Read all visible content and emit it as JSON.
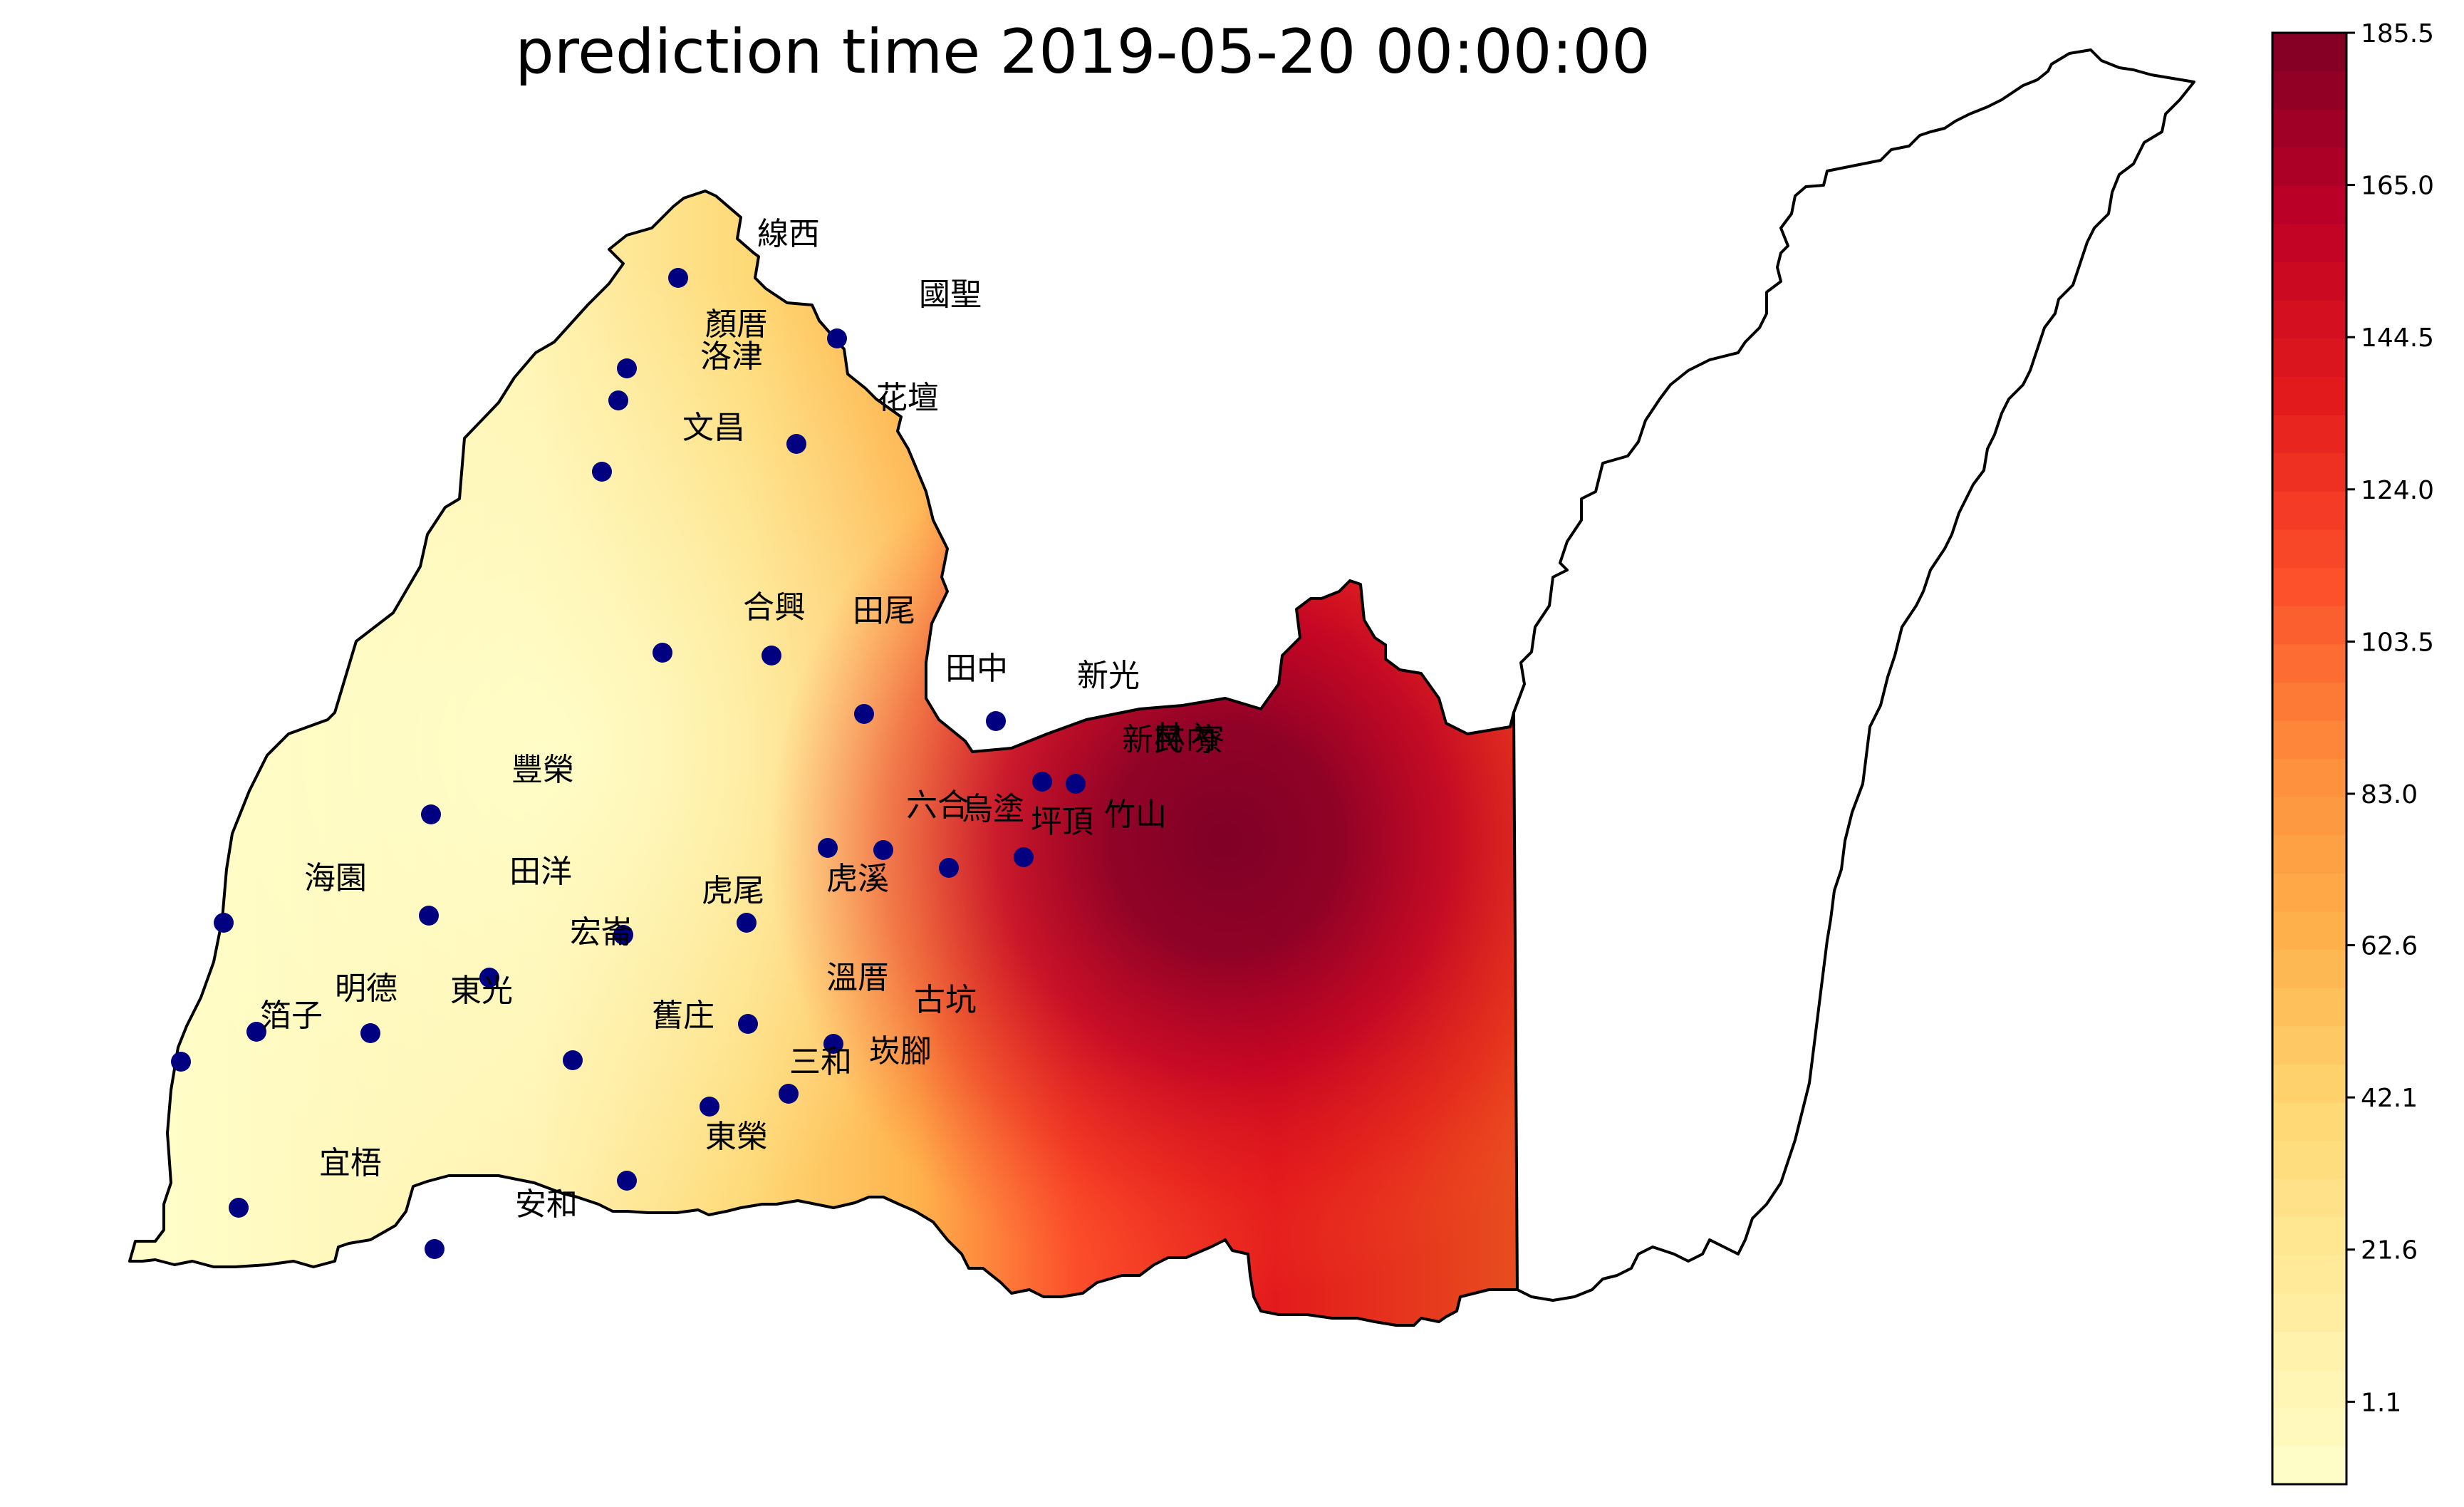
{
  "title": "prediction time 2019-05-20 00:00:00",
  "colorbar": {
    "min": -10.0,
    "max": 185.5,
    "ticks": [
      "1.1",
      "21.6",
      "42.1",
      "62.6",
      "83.0",
      "103.5",
      "124.0",
      "144.5",
      "165.0",
      "185.5"
    ],
    "colormap": "YlOrRd",
    "colors": [
      "#ffffcc",
      "#ffeda0",
      "#fed976",
      "#feb24c",
      "#fd8d3c",
      "#fc4e2a",
      "#e31a1c",
      "#bd0026",
      "#800026"
    ]
  },
  "basemap": {
    "outline_color": "#000000",
    "background": "#ffffff"
  },
  "stations": {
    "marker_color": "#000080",
    "labels": [
      {
        "name": "線西"
      },
      {
        "name": "國聖"
      },
      {
        "name": "顏厝"
      },
      {
        "name": "洛津"
      },
      {
        "name": "花壇"
      },
      {
        "name": "文昌"
      },
      {
        "name": "合興"
      },
      {
        "name": "田尾"
      },
      {
        "name": "田中"
      },
      {
        "name": "新光"
      },
      {
        "name": "新民"
      },
      {
        "name": "林內"
      },
      {
        "name": "寮"
      },
      {
        "name": "豐榮"
      },
      {
        "name": "六合"
      },
      {
        "name": "烏塗"
      },
      {
        "name": "坪頂"
      },
      {
        "name": "竹山"
      },
      {
        "name": "海園"
      },
      {
        "name": "田洋"
      },
      {
        "name": "虎溪"
      },
      {
        "name": "虎尾"
      },
      {
        "name": "宏崙"
      },
      {
        "name": "溫厝"
      },
      {
        "name": "古坑"
      },
      {
        "name": "明德"
      },
      {
        "name": "東光"
      },
      {
        "name": "箔子"
      },
      {
        "name": "舊庄"
      },
      {
        "name": "崁腳"
      },
      {
        "name": "三和"
      },
      {
        "name": "東榮"
      },
      {
        "name": "宜梧"
      },
      {
        "name": "安和"
      }
    ]
  }
}
